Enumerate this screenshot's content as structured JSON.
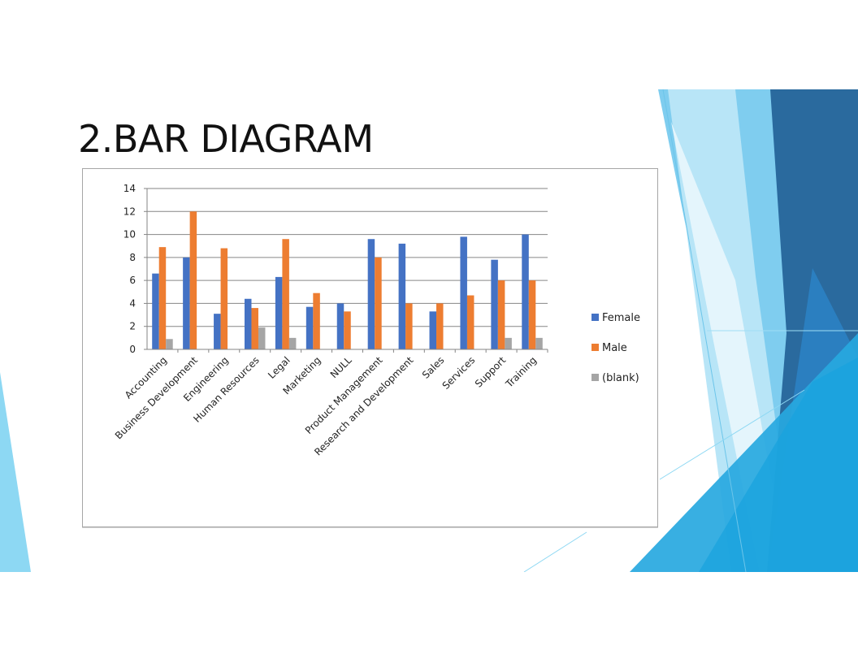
{
  "slide": {
    "title": "2.BAR DIAGRAM"
  },
  "colors": {
    "female": "#4472c4",
    "male": "#ed7d31",
    "blank": "#a5a5a5",
    "gridline": "#868686",
    "accent_light": "#7dd0ef",
    "accent_mid": "#2aa9df",
    "accent_dark": "#2a6a9e"
  },
  "chart_data": {
    "type": "bar",
    "categories": [
      "Accounting",
      "Business Development",
      "Engineering",
      "Human Resources",
      "Legal",
      "Marketing",
      "NULL",
      "Product Management",
      "Research and Development",
      "Sales",
      "Services",
      "Support",
      "Training"
    ],
    "series": [
      {
        "name": "Female",
        "values": [
          6.6,
          8.0,
          3.1,
          4.4,
          6.3,
          3.7,
          4.0,
          9.6,
          9.2,
          3.3,
          9.8,
          7.8,
          10.0
        ]
      },
      {
        "name": "Male",
        "values": [
          8.9,
          12.0,
          8.8,
          3.6,
          9.6,
          4.9,
          3.3,
          8.0,
          4.0,
          4.0,
          4.7,
          6.0,
          6.0
        ]
      },
      {
        "name": "(blank)",
        "values": [
          0.9,
          null,
          null,
          1.9,
          1.0,
          null,
          null,
          null,
          null,
          null,
          null,
          1.0,
          1.0
        ]
      }
    ],
    "yticks": [
      0,
      2,
      4,
      6,
      8,
      10,
      12,
      14
    ],
    "ylim": [
      0,
      14
    ],
    "grid": true,
    "legend_position": "right"
  }
}
